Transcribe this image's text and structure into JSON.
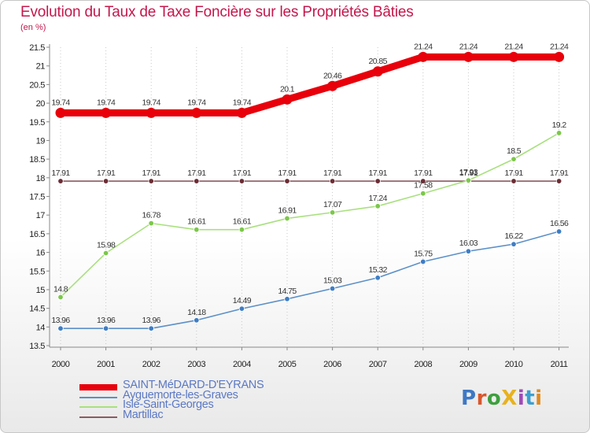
{
  "title": "Evolution du Taux de Taxe Foncière sur les Propriétés Bâties",
  "unit_label": "(en %)",
  "logo": {
    "text": "ProXiti",
    "colors": [
      "#3d78c4",
      "#d9572b",
      "#3d9f3d",
      "#e8b21e",
      "#9f4ab8",
      "#3d9fcf",
      "#e08a1e"
    ]
  },
  "chart_data": {
    "type": "line",
    "x": [
      "2000",
      "2001",
      "2002",
      "2003",
      "2004",
      "2005",
      "2006",
      "2007",
      "2008",
      "2009",
      "2010",
      "2011"
    ],
    "ylim": [
      13.5,
      21.5
    ],
    "yticks": [
      13.5,
      14,
      14.5,
      15,
      15.5,
      16,
      16.5,
      17,
      17.5,
      18,
      18.5,
      19,
      19.5,
      20,
      20.5,
      21,
      21.5
    ],
    "grid": "dotted vertical",
    "legend_position": "bottom-left",
    "series": [
      {
        "name": "SAINT-MéDARD-D'EYRANS",
        "color": "#e8000b",
        "stroke_weight": "thick",
        "values": [
          19.74,
          19.74,
          19.74,
          19.74,
          19.74,
          20.1,
          20.46,
          20.85,
          21.24,
          21.24,
          21.24,
          21.24
        ],
        "labels": [
          "19.74",
          "19.74",
          "19.74",
          "19.74",
          "19.74",
          "20.1",
          "20.46",
          "20.85",
          "21.24",
          "21.24",
          "21.24",
          "21.24"
        ]
      },
      {
        "name": "Ayguemorte-les-Graves",
        "color": "#5b90c8",
        "marker": "#3e7dc4",
        "stroke_weight": "thin",
        "values": [
          13.96,
          13.96,
          13.96,
          14.18,
          14.49,
          14.75,
          15.03,
          15.32,
          15.75,
          16.03,
          16.22,
          16.56
        ],
        "labels": [
          "13.96",
          "13.96",
          "13.96",
          "14.18",
          "14.49",
          "14.75",
          "15.03",
          "15.32",
          "15.75",
          "16.03",
          "16.22",
          "16.56"
        ]
      },
      {
        "name": "Isle-Saint-Georges",
        "color": "#a9e07e",
        "marker": "#7cc74a",
        "stroke_weight": "thin",
        "values": [
          14.8,
          15.98,
          16.78,
          16.61,
          16.61,
          16.91,
          17.07,
          17.24,
          17.58,
          17.93,
          18.5,
          19.2
        ],
        "labels": [
          "14.8",
          "15.98",
          "16.78",
          "16.61",
          "16.61",
          "16.91",
          "17.07",
          "17.24",
          "17.58",
          "17.93",
          "18.5",
          "19.2"
        ]
      },
      {
        "name": "Martillac",
        "color": "#8b5a5f",
        "marker": "#6b2d35",
        "stroke_weight": "thin",
        "values": [
          17.91,
          17.91,
          17.91,
          17.91,
          17.91,
          17.91,
          17.91,
          17.91,
          17.91,
          17.91,
          17.91,
          17.91
        ],
        "labels": [
          "17.91",
          "17.91",
          "17.91",
          "17.91",
          "17.91",
          "17.91",
          "17.91",
          "17.91",
          "17.91",
          "17.91",
          "17.91",
          "17.91"
        ]
      }
    ]
  }
}
